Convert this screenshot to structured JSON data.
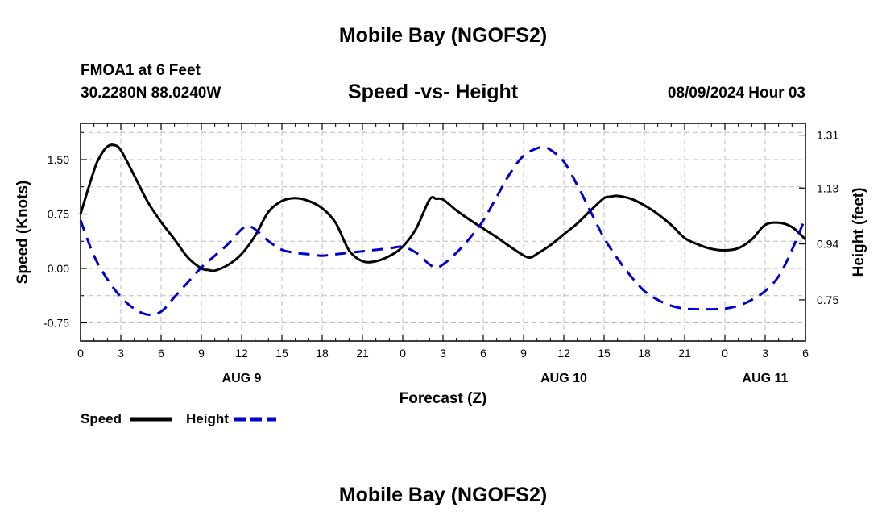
{
  "page": {
    "title_top": "Mobile Bay (NGOFS2)",
    "title_bottom": "Mobile Bay (NGOFS2)"
  },
  "header": {
    "station": "FMOA1 at 6 Feet",
    "coords": "30.2280N  88.0240W",
    "datetime": "08/09/2024 Hour 03"
  },
  "chart_data": {
    "type": "line",
    "title": "Speed -vs- Height",
    "xlabel": "Forecast (Z)",
    "ylabel_left": "Speed (Knots)",
    "ylabel_right": "Height (feet)",
    "xlim": [
      0,
      54
    ],
    "ylim_left": [
      -1.0,
      2.0
    ],
    "ylim_right": [
      0.61,
      1.35
    ],
    "x_ticks": [
      0,
      3,
      6,
      9,
      12,
      15,
      18,
      21,
      24,
      27,
      30,
      33,
      36,
      39,
      42,
      45,
      48,
      51,
      54
    ],
    "x_tick_labels": [
      "0",
      "3",
      "6",
      "9",
      "12",
      "15",
      "18",
      "21",
      "0",
      "3",
      "6",
      "9",
      "12",
      "15",
      "18",
      "21",
      "0",
      "3",
      "6"
    ],
    "day_labels": [
      {
        "x": 12,
        "label": "AUG 9"
      },
      {
        "x": 36,
        "label": "AUG 10"
      },
      {
        "x": 51,
        "label": "AUG 11"
      }
    ],
    "left_ticks": [
      1.5,
      0.75,
      0.0,
      -0.75
    ],
    "left_tick_labels": [
      "1.50",
      "0.75",
      "0.00",
      "-0.75"
    ],
    "right_ticks": [
      1.31,
      1.13,
      0.94,
      0.75
    ],
    "right_tick_labels": [
      "1.31",
      "1.13",
      "0.94",
      "0.75"
    ],
    "grid": true,
    "legend_position": "bottom-left",
    "series": [
      {
        "name": "Speed",
        "axis": "left",
        "color": "#000000",
        "style": "solid",
        "x": [
          0,
          1,
          1.5,
          2,
          2.5,
          3,
          4,
          5,
          6,
          7,
          8,
          9,
          9.5,
          10,
          11,
          12,
          13,
          14,
          15,
          16,
          17,
          18,
          19,
          20,
          21,
          22,
          23,
          24,
          25,
          26,
          26.5,
          27,
          28,
          29,
          30,
          31,
          32,
          33,
          33.5,
          34,
          35,
          36,
          37,
          38,
          39,
          39.5,
          40,
          41,
          42,
          43,
          44,
          45,
          46,
          47,
          48,
          49,
          50,
          51,
          52,
          53,
          54
        ],
        "y": [
          0.75,
          1.35,
          1.56,
          1.68,
          1.7,
          1.63,
          1.28,
          0.92,
          0.64,
          0.4,
          0.15,
          0.0,
          -0.02,
          -0.03,
          0.05,
          0.2,
          0.45,
          0.78,
          0.93,
          0.97,
          0.93,
          0.83,
          0.63,
          0.25,
          0.1,
          0.1,
          0.17,
          0.3,
          0.55,
          0.95,
          0.96,
          0.95,
          0.8,
          0.67,
          0.55,
          0.43,
          0.3,
          0.18,
          0.15,
          0.2,
          0.32,
          0.47,
          0.62,
          0.8,
          0.97,
          0.99,
          1.0,
          0.96,
          0.87,
          0.75,
          0.6,
          0.42,
          0.33,
          0.27,
          0.25,
          0.28,
          0.4,
          0.6,
          0.63,
          0.57,
          0.4
        ]
      },
      {
        "name": "Height",
        "axis": "right",
        "color": "#0000cc",
        "style": "dashed",
        "x": [
          0,
          1,
          2,
          3,
          4,
          5,
          6,
          7,
          8,
          9,
          10,
          11,
          12,
          12.5,
          13,
          14,
          15,
          16,
          17,
          18,
          19,
          20,
          21,
          22,
          23,
          24,
          25,
          26,
          26.5,
          27,
          28,
          29,
          30,
          31,
          32,
          33,
          34,
          34.5,
          35,
          36,
          37,
          38,
          39,
          40,
          41,
          42,
          43,
          44,
          45,
          46,
          47,
          48,
          49,
          50,
          51,
          52,
          53,
          54
        ],
        "y": [
          1.02,
          0.9,
          0.82,
          0.76,
          0.72,
          0.7,
          0.71,
          0.76,
          0.81,
          0.86,
          0.9,
          0.94,
          0.99,
          1.0,
          0.99,
          0.95,
          0.92,
          0.91,
          0.905,
          0.9,
          0.905,
          0.91,
          0.915,
          0.92,
          0.925,
          0.93,
          0.91,
          0.87,
          0.86,
          0.87,
          0.91,
          0.96,
          1.02,
          1.1,
          1.18,
          1.24,
          1.265,
          1.268,
          1.26,
          1.22,
          1.14,
          1.05,
          0.96,
          0.89,
          0.83,
          0.78,
          0.75,
          0.73,
          0.72,
          0.718,
          0.718,
          0.72,
          0.73,
          0.75,
          0.78,
          0.83,
          0.92,
          1.03
        ]
      }
    ]
  }
}
